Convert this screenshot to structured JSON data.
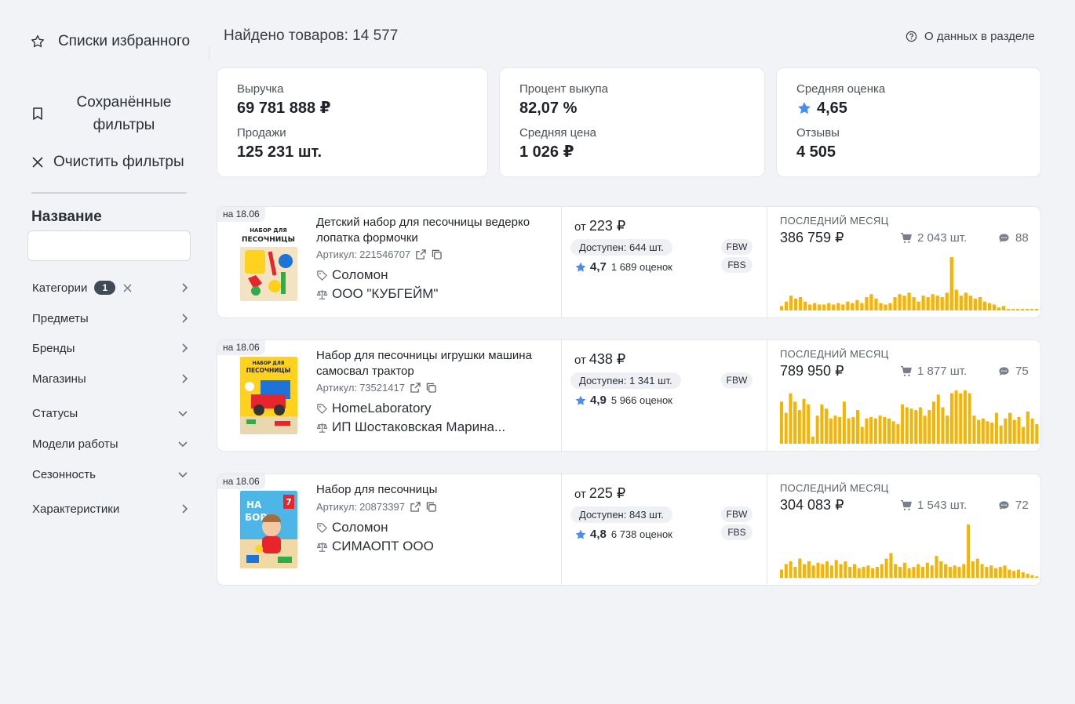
{
  "sidebar": {
    "favorites_label": "Списки избранного",
    "saved_label": "Сохранённые фильтры",
    "clear_label": "Очистить фильтры",
    "name_title": "Название",
    "name_placeholder": "",
    "filters": [
      {
        "label": "Категории",
        "badge": "1",
        "arrow": "chevron-right"
      },
      {
        "label": "Предметы",
        "arrow": "chevron-right"
      },
      {
        "label": "Бренды",
        "arrow": "chevron-right"
      },
      {
        "label": "Магазины",
        "arrow": "chevron-right"
      },
      {
        "label": "Статусы",
        "arrow": "chevron-down"
      },
      {
        "label": "Модели работы",
        "arrow": "chevron-down"
      },
      {
        "label": "Сезонность",
        "arrow": "chevron-down"
      },
      {
        "label": "Характеристики",
        "arrow": "chevron-right"
      }
    ]
  },
  "header": {
    "found": "Найдено товаров: 14 577",
    "about": "О данных в разделе"
  },
  "stats": [
    {
      "k1": "Выручка",
      "v1": "69 781 888 ₽",
      "k2": "Продажи",
      "v2": "125 231 шт."
    },
    {
      "k1": "Процент выкупа",
      "v1": "82,07 %",
      "k2": "Средняя цена",
      "v2": "1 026 ₽"
    },
    {
      "k1": "Средняя оценка",
      "v1": "4,65",
      "k2": "Отзывы",
      "v2": "4 505"
    }
  ],
  "products": [
    {
      "date": "на 18.06",
      "title": "Детский набор для песочницы ведерко лопатка формочки",
      "sku_label": "Артикул:",
      "sku": "221546707",
      "brand": "Соломон",
      "seller": "ООО \"КУБГЕЙМ\"",
      "price_from": "от",
      "price": "223 ₽",
      "available": "Доступен: 644 шт.",
      "rating": "4,7",
      "reviews_count": "1 689 оценок",
      "models": [
        "FBW",
        "FBS"
      ],
      "last_month": "ПОСЛЕДНИЙ МЕСЯЦ",
      "revenue": "386 759 ₽",
      "sold": "2 043 шт.",
      "feedbacks": "88",
      "thumb_text": "НАБОР ДЛЯ ПЕСОЧНИЦЫ",
      "sparkline": [
        3,
        6,
        10,
        8,
        9,
        6,
        4,
        5,
        4,
        4,
        5,
        4,
        5,
        4,
        6,
        5,
        7,
        5,
        9,
        11,
        8,
        5,
        4,
        5,
        9,
        11,
        10,
        12,
        9,
        6,
        10,
        9,
        11,
        10,
        9,
        12,
        36,
        14,
        10,
        12,
        10,
        8,
        9,
        6,
        5,
        4,
        2,
        3,
        1,
        1,
        1,
        1,
        1,
        1,
        1
      ]
    },
    {
      "date": "на 18.06",
      "title": "Набор для песочницы игрушки машина самосвал трактор",
      "sku_label": "Артикул:",
      "sku": "73521417",
      "brand": "HomeLaboratory",
      "seller": "ИП Шостаковская Марина...",
      "price_from": "от",
      "price": "438 ₽",
      "available": "Доступен: 1 341 шт.",
      "rating": "4,9",
      "reviews_count": "5 966 оценок",
      "models": [
        "FBW"
      ],
      "last_month": "ПОСЛЕДНИЙ МЕСЯЦ",
      "revenue": "789 950 ₽",
      "sold": "1 877 шт.",
      "feedbacks": "75",
      "thumb_text": "НАБОР ДЛЯ ПЕСОЧНИЦЫ",
      "sparkline": [
        30,
        22,
        36,
        30,
        24,
        32,
        28,
        5,
        20,
        28,
        25,
        18,
        20,
        19,
        30,
        18,
        19,
        24,
        12,
        18,
        19,
        18,
        20,
        19,
        18,
        16,
        14,
        28,
        26,
        25,
        24,
        26,
        20,
        24,
        30,
        35,
        26,
        20,
        36,
        38,
        36,
        38,
        36,
        20,
        17,
        18,
        16,
        15,
        22,
        13,
        18,
        22,
        17,
        19,
        12,
        23,
        18,
        14
      ]
    },
    {
      "date": "на 18.06",
      "title": "Набор для песочницы",
      "sku_label": "Артикул:",
      "sku": "20873397",
      "brand": "Соломон",
      "seller": "СИМАОПТ ООО",
      "price_from": "от",
      "price": "225 ₽",
      "available": "Доступен: 843 шт.",
      "rating": "4,8",
      "reviews_count": "6 738 оценок",
      "models": [
        "FBW",
        "FBS"
      ],
      "last_month": "ПОСЛЕДНИЙ МЕСЯЦ",
      "revenue": "304 083 ₽",
      "sold": "1 543 шт.",
      "feedbacks": "72",
      "thumb_text": "НА БОР",
      "sparkline": [
        6,
        10,
        12,
        8,
        14,
        10,
        12,
        9,
        11,
        10,
        12,
        9,
        13,
        10,
        12,
        8,
        10,
        7,
        8,
        9,
        7,
        8,
        10,
        14,
        18,
        10,
        8,
        11,
        7,
        8,
        10,
        8,
        11,
        9,
        16,
        12,
        10,
        8,
        9,
        8,
        10,
        39,
        12,
        14,
        10,
        8,
        9,
        7,
        8,
        9,
        6,
        5,
        6,
        4,
        3,
        2,
        1
      ]
    }
  ],
  "colors": {
    "accent": "#4a8cf2",
    "bars": "#f6b300",
    "bg": "#f2f3f6"
  }
}
